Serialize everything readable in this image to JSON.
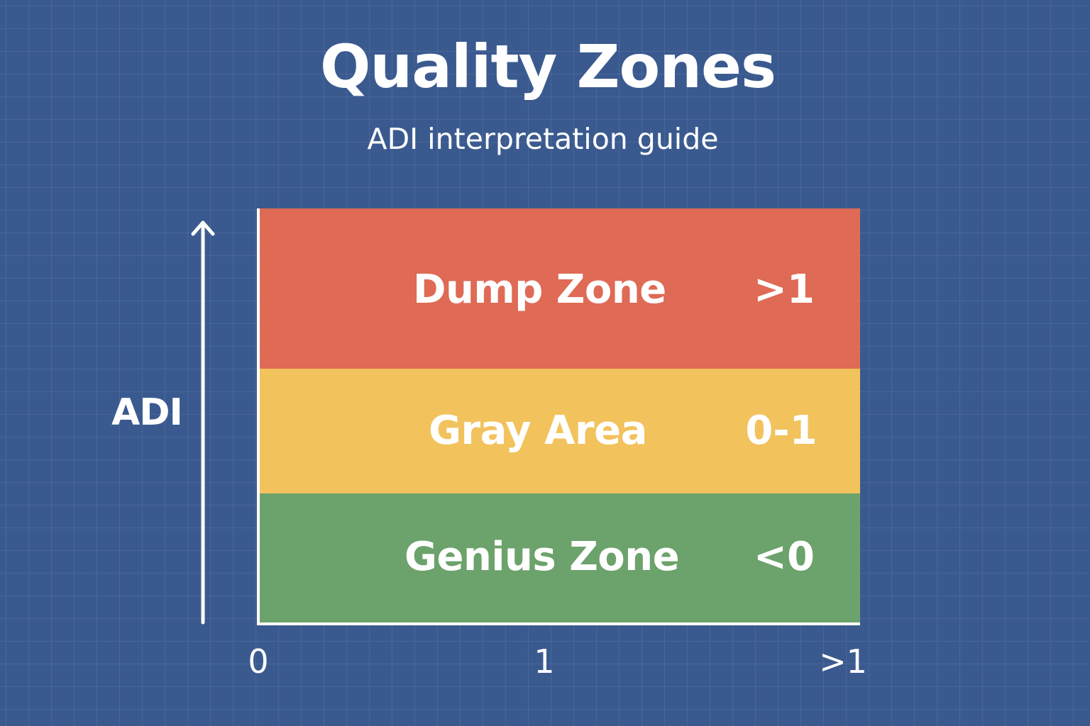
{
  "header": {
    "title": "Quality Zones",
    "subtitle": "ADI interpretation guide"
  },
  "colors": {
    "background": "#3a5a8f",
    "dump_zone": "#df6a55",
    "gray_area": "#f2c25c",
    "genius_zone": "#6ca26b",
    "text": "#ffffff"
  },
  "chart_data": {
    "type": "table",
    "y_axis_label": "ADI",
    "x_tick_labels": [
      "0",
      "1",
      ">1"
    ],
    "zones": [
      {
        "name": "Dump Zone",
        "range": ">1",
        "color": "#df6a55"
      },
      {
        "name": "Gray Area",
        "range": "0-1",
        "color": "#f2c25c"
      },
      {
        "name": "Genius Zone",
        "range": "<0",
        "color": "#6ca26b"
      }
    ]
  }
}
